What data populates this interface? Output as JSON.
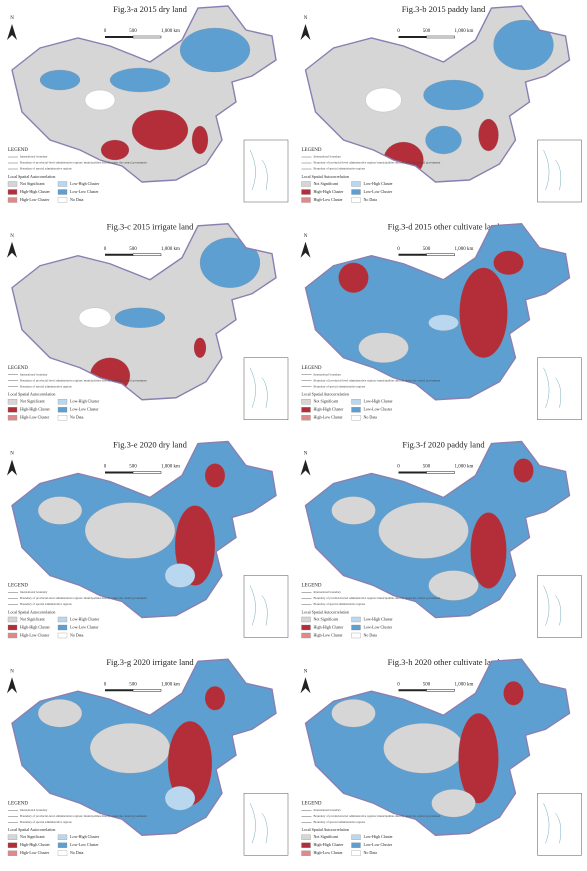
{
  "panels": [
    {
      "title": "Fig.3-a 2015 dry land"
    },
    {
      "title": "Fig.3-b 2015 paddy land"
    },
    {
      "title": "Fig.3-c 2015 irrigate land"
    },
    {
      "title": "Fig.3-d 2015 other cultivate land"
    },
    {
      "title": "Fig.3-e 2020 dry land"
    },
    {
      "title": "Fig.3-f 2020 paddy land"
    },
    {
      "title": "Fig.3-g 2020 irrigate land"
    },
    {
      "title": "Fig.3-h 2020 other cultivate land"
    }
  ],
  "north": "N",
  "scale": [
    "0",
    "500",
    "1,000 km"
  ],
  "legend": {
    "title": "LEGEND",
    "lines": [
      "International boundary",
      "Boundary of provincial-level administrative regions/ municipalities directly under the central government",
      "Boundary of special administrative regions"
    ],
    "subtitle": "Local Spatial Autocorrelation",
    "items": [
      "Not Significant",
      "Low-High Cluster",
      "High-High Cluster",
      "Low-Low Cluster",
      "High-Low Cluster",
      "No Data"
    ]
  }
}
